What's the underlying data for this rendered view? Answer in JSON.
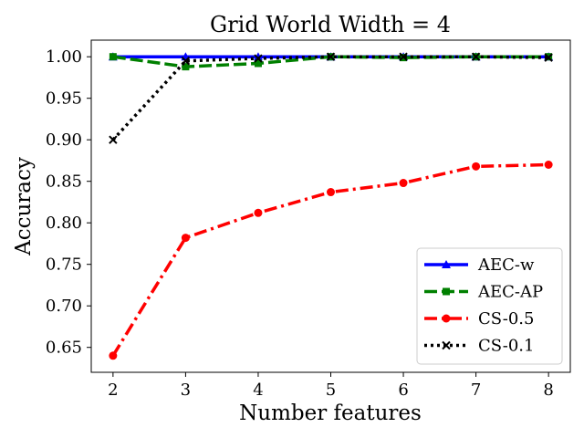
{
  "chart_data": {
    "type": "line",
    "title": "Grid World Width = 4",
    "xlabel": "Number features",
    "ylabel": "Accuracy",
    "x": [
      2,
      3,
      4,
      5,
      6,
      7,
      8
    ],
    "xlim": [
      1.7,
      8.3
    ],
    "ylim": [
      0.62,
      1.02
    ],
    "xticks": [
      "2",
      "3",
      "4",
      "5",
      "6",
      "7",
      "8"
    ],
    "yticks": [
      "0.65",
      "0.70",
      "0.75",
      "0.80",
      "0.85",
      "0.90",
      "0.95",
      "1.00"
    ],
    "grid": false,
    "legend_position": "lower-right",
    "series": [
      {
        "name": "AEC-w",
        "values": [
          1.0,
          1.0,
          1.0,
          1.0,
          1.0,
          1.0,
          1.0
        ],
        "color": "#0000ff",
        "line_style": "solid",
        "marker": "triangle"
      },
      {
        "name": "AEC-AP",
        "values": [
          1.0,
          0.988,
          0.992,
          1.0,
          0.999,
          1.0,
          1.0
        ],
        "color": "#008000",
        "line_style": "dashed",
        "marker": "square"
      },
      {
        "name": "CS-0.5",
        "values": [
          0.64,
          0.782,
          0.812,
          0.837,
          0.848,
          0.868,
          0.87
        ],
        "color": "#ff0000",
        "line_style": "dashdot",
        "marker": "circle"
      },
      {
        "name": "CS-0.1",
        "values": [
          0.9,
          0.995,
          0.998,
          1.0,
          1.0,
          1.0,
          0.999
        ],
        "color": "#000000",
        "line_style": "dotted",
        "marker": "x"
      }
    ]
  }
}
